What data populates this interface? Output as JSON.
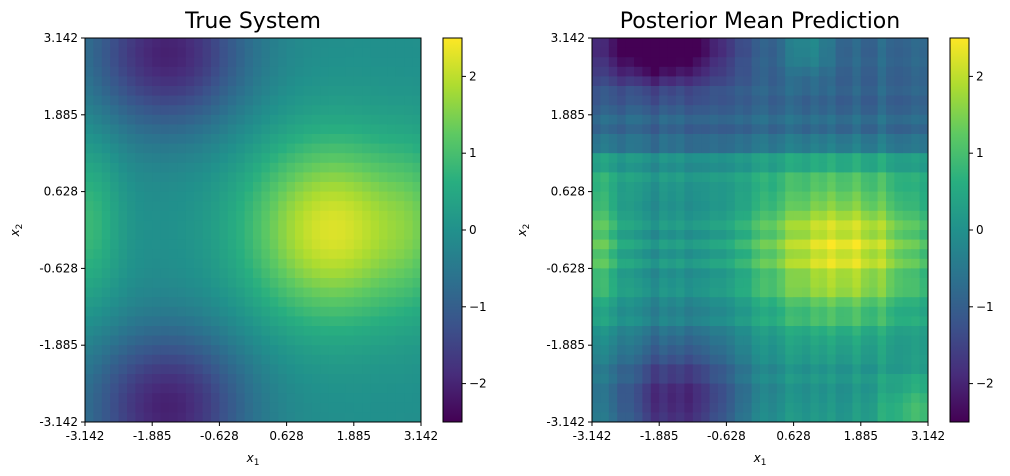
{
  "chart_data": [
    {
      "type": "heatmap",
      "title": "True System",
      "xlabel": "x1",
      "ylabel": "x2",
      "xlim": [
        -3.142,
        3.142
      ],
      "ylim": [
        -3.142,
        3.142
      ],
      "x_ticks": [
        "-3.142",
        "-1.885",
        "-0.628",
        "0.628",
        "1.885",
        "3.142"
      ],
      "y_ticks": [
        "3.142",
        "1.885",
        "0.628",
        "-0.628",
        "-1.885",
        "-3.142"
      ],
      "colorbar": {
        "range": [
          -2.5,
          2.5
        ],
        "ticks": [
          "2",
          "1",
          "0",
          "−1",
          "−2"
        ],
        "colormap": "viridis"
      },
      "features": {
        "peak": {
          "x": 1.5,
          "y": 0.0,
          "value": 2.3
        },
        "troughs": [
          {
            "x": -1.6,
            "y": 2.9,
            "value": -2.0
          },
          {
            "x": -1.6,
            "y": -2.9,
            "value": -2.0
          }
        ]
      }
    },
    {
      "type": "heatmap",
      "title": "Posterior Mean Prediction",
      "xlabel": "x1",
      "ylabel": "x2",
      "xlim": [
        -3.142,
        3.142
      ],
      "ylim": [
        -3.142,
        3.142
      ],
      "x_ticks": [
        "-3.142",
        "-1.885",
        "-0.628",
        "0.628",
        "1.885",
        "3.142"
      ],
      "y_ticks": [
        "3.142",
        "1.885",
        "0.628",
        "-0.628",
        "-1.885",
        "-3.142"
      ],
      "colorbar": {
        "range": [
          -2.5,
          2.5
        ],
        "ticks": [
          "2",
          "1",
          "0",
          "−1",
          "−2"
        ],
        "colormap": "viridis"
      },
      "features": {
        "peak": {
          "x": 1.5,
          "y": -0.3,
          "value": 2.3
        },
        "troughs": [
          {
            "x": -1.9,
            "y": 3.0,
            "value": -2.3
          },
          {
            "x": -1.6,
            "y": -2.9,
            "value": -2.1
          }
        ]
      }
    }
  ]
}
